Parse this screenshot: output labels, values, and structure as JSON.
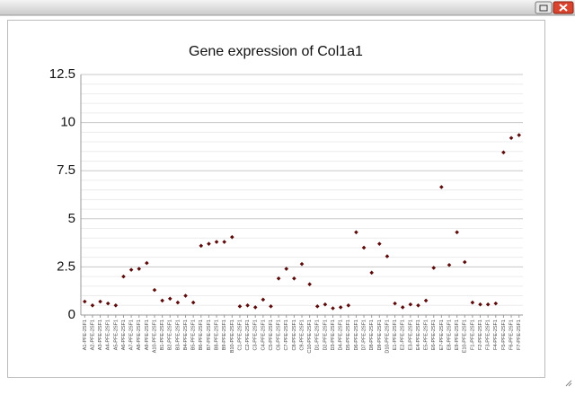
{
  "chart_data": {
    "type": "scatter",
    "title": "Gene expression of Col1a1",
    "categories": [
      "A1-PFE-2SF1",
      "A2-PFE-2SF1",
      "A3-PFE-2SF1",
      "A4-PFE-2SF1",
      "A5-PFE-2SF1",
      "A6-PFE-2SF1",
      "A7-PFE-2SF1",
      "A8-PFE-2SF1",
      "A9-PFE-2SF1",
      "A10-PFE-2SF1",
      "B1-PFE-2SF1",
      "B2-PFE-2SF1",
      "B3-PFE-2SF1",
      "B4-PFE-2SF1",
      "B5-PFE-2SF1",
      "B6-PFE-2SF1",
      "B7-PFE-2SF1",
      "B8-PFE-2SF1",
      "B9-PFE-2SF1",
      "B10-PFE-2SF1",
      "C1-PFE-2SF1",
      "C2-PFE-2SF1",
      "C3-PFE-2SF1",
      "C4-PFE-2SF1",
      "C5-PFE-2SF1",
      "C6-PFE-2SF1",
      "C7-PFE-2SF1",
      "C8-PFE-2SF1",
      "C9-PFE-2SF1",
      "C10-PFE-2SF1",
      "D1-PFE-2SF1",
      "D2-PFE-2SF1",
      "D3-PFE-2SF1",
      "D4-PFE-2SF1",
      "D5-PFE-2SF1",
      "D6-PFE-2SF1",
      "D7-PFE-2SF1",
      "D8-PFE-2SF1",
      "D9-PFE-2SF1",
      "D10-PFE-2SF1",
      "E1-PFE-2SF1",
      "E2-PFE-2SF1",
      "E3-PFE-2SF1",
      "E4-PFE-2SF1",
      "E5-PFE-2SF1",
      "E6-PFE-2SF1",
      "E7-PFE-2SF1",
      "E8-PFE-2SF1",
      "E9-PFE-2SF1",
      "E10-PFE-2SF1",
      "F1-PFE-2SF1",
      "F2-PFE-2SF1",
      "F3-PFE-2SF1",
      "F4-PFE-2SF1",
      "F5-PFE-2SF1",
      "F6-PFE-2SF1",
      "F7-PFE-2SF1"
    ],
    "values": [
      0.7,
      0.5,
      0.7,
      0.6,
      0.5,
      2.0,
      2.35,
      2.4,
      2.7,
      1.3,
      0.75,
      0.85,
      0.65,
      1.0,
      0.65,
      3.6,
      3.7,
      3.8,
      3.8,
      4.05,
      0.45,
      0.5,
      0.4,
      0.8,
      0.45,
      1.9,
      2.4,
      1.9,
      2.65,
      1.6,
      0.45,
      0.55,
      0.35,
      0.4,
      0.5,
      4.3,
      3.5,
      2.2,
      3.7,
      3.05,
      0.6,
      0.4,
      0.55,
      0.5,
      0.75,
      2.45,
      6.65,
      2.6,
      4.3,
      2.75,
      0.65,
      0.55,
      0.55,
      0.6,
      8.45,
      9.2,
      9.35
    ],
    "color": "#5c0b0b",
    "ylim": [
      0,
      12.5
    ],
    "yticks": [
      0,
      2.5,
      5,
      7.5,
      10,
      12.5
    ],
    "grid": true,
    "minor_grid": true
  }
}
